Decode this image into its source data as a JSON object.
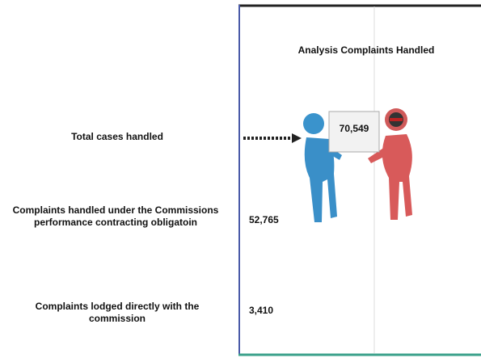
{
  "title": "Analysis Complaints Handled",
  "rows": [
    {
      "label": "Total cases handled",
      "value": "70,549"
    },
    {
      "label": "Complaints handled under the Commissions performance contracting obligatoin",
      "value": "52,765"
    },
    {
      "label": "Complaints lodged directly with the commission",
      "value": "3,410"
    }
  ]
}
